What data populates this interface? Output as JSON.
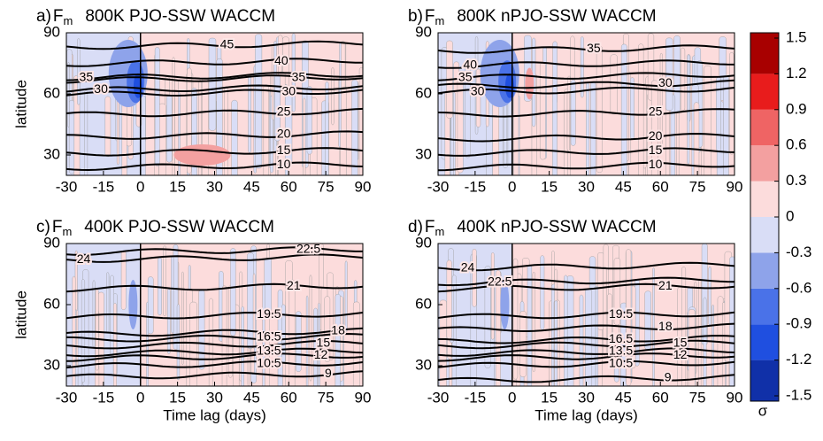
{
  "chart_data": [
    {
      "type": "contour",
      "panel_label": "a)",
      "variable": "F",
      "subscript": "m",
      "title": "800K PJO-SSW WACCM",
      "ylabel": "latitude",
      "xlim": [
        -30,
        90
      ],
      "xticks": [
        -30,
        -15,
        0,
        15,
        30,
        45,
        60,
        75,
        90
      ],
      "ylim": [
        20,
        90
      ],
      "yticks": [
        30,
        60,
        90
      ],
      "contour_labels": [
        45,
        40,
        35,
        30,
        25,
        20,
        15,
        10,
        35,
        30
      ]
    },
    {
      "type": "contour",
      "panel_label": "b)",
      "variable": "F",
      "subscript": "m",
      "title": "800K nPJO-SSW WACCM",
      "xlim": [
        -30,
        90
      ],
      "xticks": [
        -30,
        -15,
        0,
        15,
        30,
        45,
        60,
        75,
        90
      ],
      "ylim": [
        20,
        90
      ],
      "yticks": [
        30,
        60,
        90
      ],
      "contour_labels": [
        35,
        40,
        35,
        30,
        30,
        25,
        20,
        15,
        10
      ]
    },
    {
      "type": "contour",
      "panel_label": "c)",
      "variable": "F",
      "subscript": "m",
      "title": "400K PJO-SSW WACCM",
      "ylabel": "latitude",
      "xlabel": "Time lag (days)",
      "xlim": [
        -30,
        90
      ],
      "xticks": [
        -30,
        -15,
        0,
        15,
        30,
        45,
        60,
        75,
        90
      ],
      "ylim": [
        20,
        90
      ],
      "yticks": [
        30,
        60,
        90
      ],
      "contour_labels": [
        24,
        22.5,
        21,
        19.5,
        18,
        16.5,
        15,
        13.5,
        12,
        10.5,
        9
      ]
    },
    {
      "type": "contour",
      "panel_label": "d)",
      "variable": "F",
      "subscript": "m",
      "title": "400K nPJO-SSW WACCM",
      "xlabel": "Time lag (days)",
      "xlim": [
        -30,
        90
      ],
      "xticks": [
        -30,
        -15,
        0,
        15,
        30,
        45,
        60,
        75,
        90
      ],
      "ylim": [
        20,
        90
      ],
      "yticks": [
        30,
        60,
        90
      ],
      "contour_labels": [
        24,
        22.5,
        21,
        19.5,
        18,
        16.5,
        15,
        13.5,
        12,
        10.5,
        9
      ]
    },
    {
      "type": "colorbar",
      "label": "σ",
      "ylim": [
        -1.5,
        1.5
      ],
      "yticks": [
        -1.5,
        -1.2,
        -0.9,
        -0.6,
        -0.3,
        0,
        0.3,
        0.6,
        0.9,
        1.2,
        1.5
      ],
      "colors": [
        "#1030a8",
        "#1f4fe0",
        "#4a72e8",
        "#8ea3ea",
        "#d9ddf6",
        "#fcdcdc",
        "#f3a0a0",
        "#ef6464",
        "#e81c1c",
        "#a80000"
      ]
    }
  ]
}
